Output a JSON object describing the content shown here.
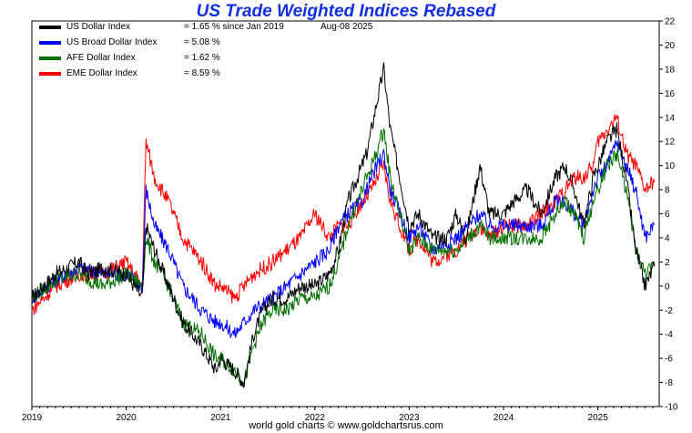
{
  "chart_data": {
    "type": "line",
    "title": "US Trade Weighted Indices Rebased",
    "date_label": "Aug-08  2025",
    "footer": "world gold charts © www.goldchartsrus.com",
    "xlabel": "",
    "ylabel": "",
    "x_tick_labels": [
      "2019",
      "2020",
      "2021",
      "2022",
      "2023",
      "2024",
      "2025"
    ],
    "ylim": [
      -10,
      22
    ],
    "y_ticks": [
      -10,
      -8,
      -6,
      -4,
      -2,
      0,
      2,
      4,
      6,
      8,
      10,
      12,
      14,
      16,
      18,
      20,
      22
    ],
    "y_axis_side": "right",
    "legend_position": "top-left",
    "grid": false,
    "series": [
      {
        "name": "US Dollar Index",
        "value_text": "= 1.65 % since Jan 2019",
        "color": "#000000",
        "x": [
          2019.0,
          2019.25,
          2019.5,
          2019.6,
          2019.75,
          2020.0,
          2020.17,
          2020.21,
          2020.3,
          2020.45,
          2020.6,
          2020.8,
          2020.95,
          2021.0,
          2021.15,
          2021.25,
          2021.35,
          2021.45,
          2021.55,
          2021.7,
          2021.85,
          2022.0,
          2022.15,
          2022.25,
          2022.35,
          2022.45,
          2022.55,
          2022.65,
          2022.73,
          2022.8,
          2022.9,
          2023.0,
          2023.1,
          2023.25,
          2023.4,
          2023.5,
          2023.6,
          2023.75,
          2023.85,
          2024.0,
          2024.1,
          2024.25,
          2024.4,
          2024.55,
          2024.65,
          2024.75,
          2024.85,
          2024.95,
          2025.0,
          2025.1,
          2025.2,
          2025.3,
          2025.4,
          2025.5,
          2025.6
        ],
        "values": [
          -1,
          1,
          2,
          1,
          1.5,
          1,
          -1,
          5,
          3,
          0,
          -3,
          -5,
          -7,
          -6,
          -7,
          -8,
          -4,
          -2,
          -1,
          -1,
          0,
          0,
          1,
          3,
          7,
          9,
          11,
          15,
          18,
          13,
          9,
          5,
          6,
          4,
          4,
          6,
          4,
          10,
          6,
          6,
          7,
          8,
          6,
          9,
          10,
          8,
          5,
          9,
          10,
          12,
          13,
          9,
          3,
          0,
          1.65
        ]
      },
      {
        "name": "US Broad Dollar Index",
        "value_text": "= 5.08 %",
        "color": "#0000ff",
        "x": [
          2019.0,
          2019.25,
          2019.5,
          2019.75,
          2020.0,
          2020.17,
          2020.21,
          2020.3,
          2020.45,
          2020.6,
          2020.8,
          2020.95,
          2021.0,
          2021.15,
          2021.35,
          2021.55,
          2021.7,
          2021.85,
          2022.0,
          2022.15,
          2022.25,
          2022.35,
          2022.5,
          2022.6,
          2022.73,
          2022.8,
          2022.9,
          2023.0,
          2023.1,
          2023.25,
          2023.5,
          2023.75,
          2023.85,
          2024.0,
          2024.1,
          2024.25,
          2024.4,
          2024.55,
          2024.65,
          2024.75,
          2024.85,
          2024.95,
          2025.0,
          2025.1,
          2025.2,
          2025.3,
          2025.4,
          2025.5,
          2025.6
        ],
        "values": [
          -1,
          0.5,
          1.5,
          1,
          1,
          0,
          8,
          5,
          3,
          0,
          -2,
          -3,
          -3,
          -4,
          -2,
          -1,
          0,
          1,
          2,
          3,
          5,
          6,
          7,
          9,
          11,
          8,
          6,
          4,
          5,
          3,
          4,
          6,
          5,
          5,
          5,
          5,
          5,
          7,
          7,
          6,
          5,
          8,
          9,
          10,
          12,
          10,
          8,
          4,
          5.08
        ]
      },
      {
        "name": "AFE Dollar Index",
        "value_text": "= 1.62 %",
        "color": "#007000",
        "x": [
          2019.0,
          2019.25,
          2019.5,
          2019.75,
          2020.0,
          2020.17,
          2020.21,
          2020.3,
          2020.45,
          2020.6,
          2020.8,
          2020.95,
          2021.0,
          2021.15,
          2021.25,
          2021.35,
          2021.45,
          2021.55,
          2021.7,
          2021.85,
          2022.0,
          2022.15,
          2022.25,
          2022.35,
          2022.45,
          2022.55,
          2022.65,
          2022.73,
          2022.8,
          2022.9,
          2023.0,
          2023.1,
          2023.25,
          2023.5,
          2023.75,
          2023.85,
          2024.0,
          2024.1,
          2024.25,
          2024.4,
          2024.55,
          2024.65,
          2024.75,
          2024.85,
          2024.95,
          2025.0,
          2025.1,
          2025.2,
          2025.3,
          2025.4,
          2025.5,
          2025.6
        ],
        "values": [
          -1,
          0.5,
          1,
          0,
          1,
          0,
          4,
          2,
          0,
          -3,
          -4,
          -6,
          -6,
          -7,
          -8,
          -5,
          -3,
          -2,
          -2,
          -1,
          -1,
          0,
          2,
          5,
          7,
          9,
          11,
          13,
          9,
          6,
          3,
          4,
          3,
          3,
          5,
          4,
          4,
          4,
          4,
          4,
          6,
          7,
          6,
          4,
          7,
          8,
          10,
          11,
          8,
          3,
          1,
          1.62
        ]
      },
      {
        "name": "EME Dollar Index",
        "value_text": "= 8.59 %",
        "color": "#ff0000",
        "x": [
          2019.0,
          2019.25,
          2019.5,
          2019.75,
          2020.0,
          2020.17,
          2020.21,
          2020.3,
          2020.45,
          2020.6,
          2020.8,
          2020.95,
          2021.0,
          2021.15,
          2021.35,
          2021.55,
          2021.7,
          2021.85,
          2022.0,
          2022.15,
          2022.25,
          2022.35,
          2022.5,
          2022.6,
          2022.73,
          2022.8,
          2022.9,
          2023.0,
          2023.1,
          2023.25,
          2023.5,
          2023.75,
          2023.85,
          2024.0,
          2024.1,
          2024.25,
          2024.4,
          2024.55,
          2024.65,
          2024.75,
          2024.85,
          2024.95,
          2025.0,
          2025.1,
          2025.2,
          2025.3,
          2025.4,
          2025.5,
          2025.6
        ],
        "values": [
          -2,
          0,
          1,
          1,
          2,
          0,
          12,
          9,
          7,
          4,
          2,
          0,
          0,
          -1,
          1,
          2,
          3,
          4,
          6,
          4,
          5,
          5,
          7,
          8,
          10,
          7,
          5,
          3,
          4,
          2,
          3,
          5,
          4,
          5,
          5,
          5,
          6,
          7,
          8,
          9,
          9,
          10,
          12,
          13,
          14,
          11,
          10,
          8,
          8.59
        ]
      }
    ]
  }
}
